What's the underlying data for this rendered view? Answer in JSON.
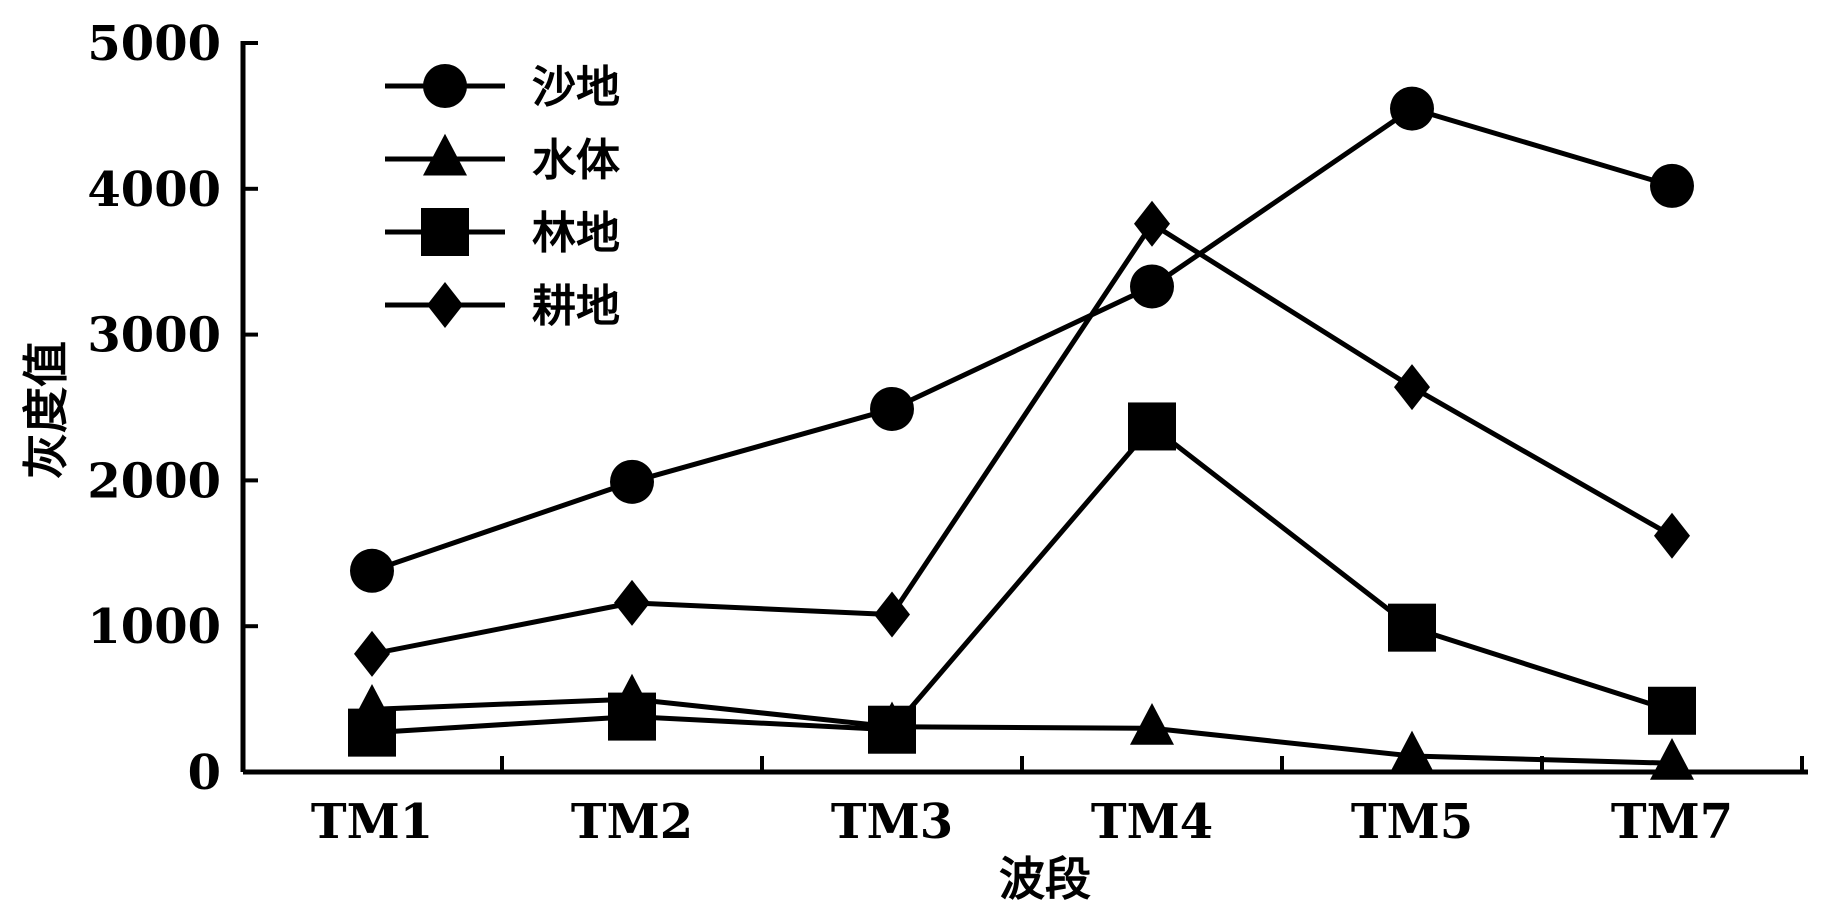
{
  "chart_data": {
    "type": "line",
    "title": "",
    "xlabel": "波段",
    "ylabel": "灰度值",
    "categories": [
      "TM1",
      "TM2",
      "TM3",
      "TM4",
      "TM5",
      "TM7"
    ],
    "ylim": [
      0,
      5000
    ],
    "yticks": [
      0,
      1000,
      2000,
      3000,
      4000,
      5000
    ],
    "grid": false,
    "legend_position": "top-left",
    "series": [
      {
        "name": "沙地",
        "marker": "circle",
        "values": [
          1380,
          1990,
          2490,
          3330,
          4550,
          4020
        ]
      },
      {
        "name": "水体",
        "marker": "triangle",
        "values": [
          430,
          500,
          310,
          300,
          110,
          60
        ]
      },
      {
        "name": "林地",
        "marker": "square",
        "values": [
          270,
          380,
          290,
          2370,
          990,
          420
        ]
      },
      {
        "name": "耕地",
        "marker": "diamond",
        "values": [
          810,
          1160,
          1080,
          3760,
          2640,
          1620
        ]
      }
    ],
    "line_color": "#000000"
  }
}
